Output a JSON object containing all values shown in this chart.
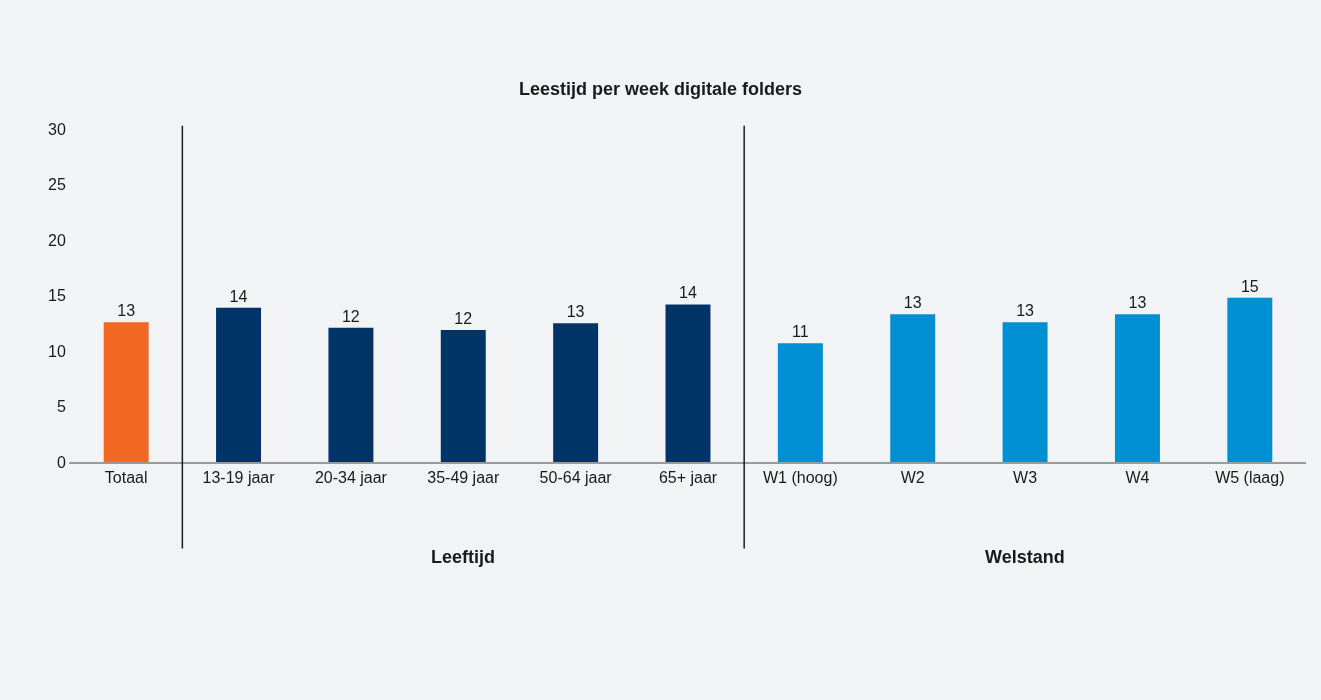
{
  "chart_data": {
    "type": "bar",
    "title": "Leestijd per week digitale folders",
    "categories": [
      "Totaal",
      "13-19 jaar",
      "20-34 jaar",
      "35-49 jaar",
      "50-64 jaar",
      "65+ jaar",
      "W1 (hoog)",
      "W2",
      "W3",
      "W4",
      "W5 (laag)"
    ],
    "values": [
      12.6,
      13.9,
      12.1,
      11.9,
      12.5,
      14.2,
      10.7,
      13.3,
      12.6,
      13.3,
      14.8
    ],
    "colors": [
      "#f26722",
      "#003366",
      "#003366",
      "#003366",
      "#003366",
      "#003366",
      "#008fd3",
      "#008fd3",
      "#008fd3",
      "#008fd3",
      "#008fd3"
    ],
    "value_labels": [
      "13",
      "14",
      "12",
      "12",
      "13",
      "14",
      "11",
      "13",
      "13",
      "13",
      "15"
    ],
    "ylim": [
      0,
      30
    ],
    "yticks": [
      0,
      5,
      10,
      15,
      20,
      25,
      30
    ],
    "grid": false,
    "legend": false,
    "annotations": [
      "Leeftijd",
      "Welstand"
    ]
  }
}
